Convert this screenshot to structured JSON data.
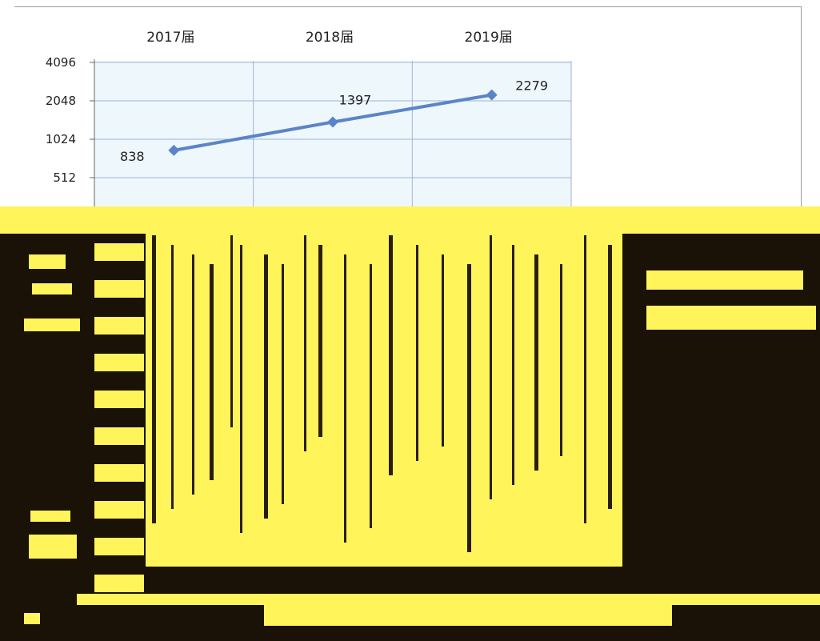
{
  "chart_data": {
    "type": "line",
    "categories": [
      "2017届",
      "2018届",
      "2019届"
    ],
    "series": [
      {
        "values": [
          838,
          1397,
          2279
        ],
        "color": "#5b84c8"
      }
    ],
    "data_labels": [
      "838",
      "1397",
      "2279"
    ],
    "y_scale": "log2",
    "y_ticks": [
      "4096",
      "2048",
      "1024",
      "512"
    ],
    "y_tick_values": [
      4096,
      2048,
      1024,
      512
    ],
    "ylim": [
      512,
      4096
    ],
    "x_axis_position": "top",
    "grid": true,
    "plot_background": "#eef7fb",
    "grid_color": "#9fb6d6"
  },
  "colors": {
    "corruption_dark": "#1a1206",
    "corruption_yellow": "#fff45a"
  }
}
